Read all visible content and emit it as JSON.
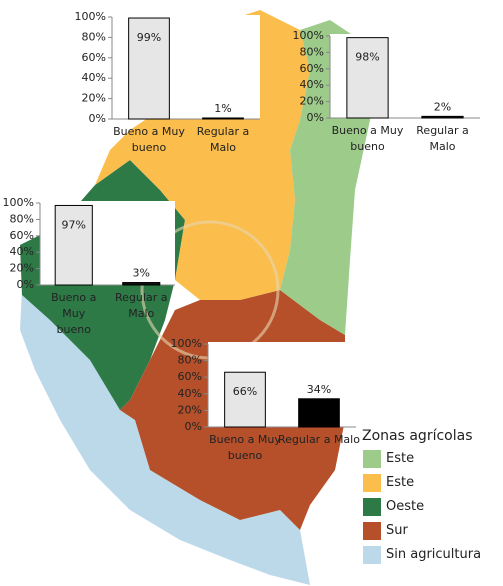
{
  "chart_data": [
    {
      "type": "bar",
      "categories": [
        "Bueno a Muy bueno",
        "Regular a Malo"
      ],
      "values": [
        99,
        1
      ],
      "value_labels": [
        "99%",
        "1%"
      ],
      "colors": [
        "#e6e6e6",
        "#111111"
      ],
      "ylim": [
        0,
        100
      ],
      "yticks": [
        {
          "value": 0,
          "label": "0%"
        },
        {
          "value": 20,
          "label": "20%"
        },
        {
          "value": 40,
          "label": "40%"
        },
        {
          "value": 60,
          "label": "60%"
        },
        {
          "value": 80,
          "label": "80%"
        },
        {
          "value": 100,
          "label": "100%"
        }
      ]
    },
    {
      "type": "bar",
      "categories": [
        "Bueno a Muy bueno",
        "Regular a Malo"
      ],
      "values": [
        98,
        2
      ],
      "value_labels": [
        "98%",
        "2%"
      ],
      "colors": [
        "#e6e6e6",
        "#111111"
      ],
      "ylim": [
        0,
        100
      ],
      "yticks": [
        {
          "value": 0,
          "label": "0%"
        },
        {
          "value": 20,
          "label": "20%"
        },
        {
          "value": 40,
          "label": "40%"
        },
        {
          "value": 60,
          "label": "60%"
        },
        {
          "value": 80,
          "label": "80%"
        },
        {
          "value": 100,
          "label": "100%"
        }
      ]
    },
    {
      "type": "bar",
      "categories": [
        "Bueno a Muy bueno",
        "Regular a Malo"
      ],
      "values": [
        97,
        3
      ],
      "value_labels": [
        "97%",
        "3%"
      ],
      "colors": [
        "#e6e6e6",
        "#111111"
      ],
      "ylim": [
        0,
        100
      ],
      "yticks": [
        {
          "value": 0,
          "label": "0%"
        },
        {
          "value": 20,
          "label": "20%"
        },
        {
          "value": 40,
          "label": "40%"
        },
        {
          "value": 60,
          "label": "60%"
        },
        {
          "value": 80,
          "label": "80%"
        },
        {
          "value": 100,
          "label": "100%"
        }
      ]
    },
    {
      "type": "bar",
      "categories": [
        "Bueno a Muy bueno",
        "Regular a Malo"
      ],
      "values": [
        66,
        34
      ],
      "value_labels": [
        "66%",
        "34%"
      ],
      "colors": [
        "#e6e6e6",
        "#000000"
      ],
      "ylim": [
        0,
        100
      ],
      "yticks": [
        {
          "value": 0,
          "label": "0%"
        },
        {
          "value": 20,
          "label": "20%"
        },
        {
          "value": 40,
          "label": "40%"
        },
        {
          "value": 60,
          "label": "60%"
        },
        {
          "value": 80,
          "label": "80%"
        },
        {
          "value": 100,
          "label": "100%"
        }
      ]
    }
  ],
  "legend": {
    "title": "Zonas agrícolas",
    "items": [
      {
        "label": "Este",
        "color": "#9dcc8a"
      },
      {
        "label": "Este",
        "color": "#fbbd4b"
      },
      {
        "label": "Oeste",
        "color": "#2e7a47"
      },
      {
        "label": "Sur",
        "color": "#b5502a"
      },
      {
        "label": "Sin agricultura",
        "color": "#bcd9ea"
      }
    ]
  }
}
